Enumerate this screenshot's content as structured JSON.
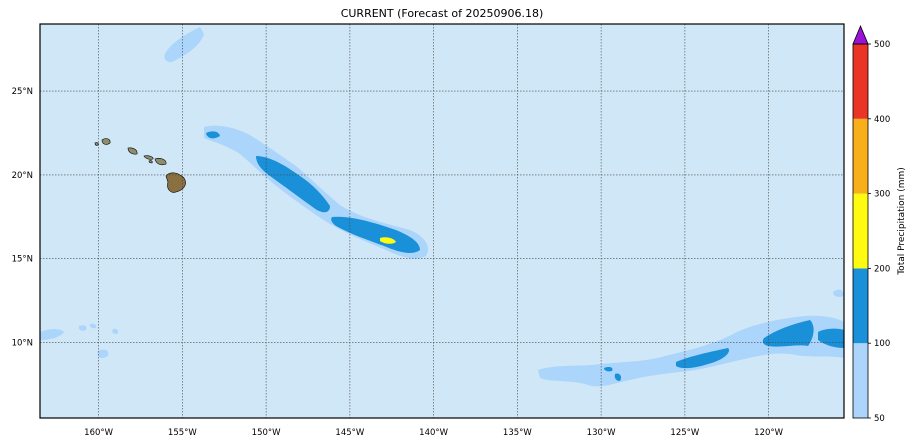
{
  "title": "CURRENT (Forecast of 20250906.18)",
  "map": {
    "lon_range": [
      -163.5,
      -115.5
    ],
    "lat_range": [
      5.5,
      29
    ],
    "lon_ticks": [
      {
        "value": -160,
        "label": "160°W"
      },
      {
        "value": -155,
        "label": "155°W"
      },
      {
        "value": -150,
        "label": "150°W"
      },
      {
        "value": -145,
        "label": "145°W"
      },
      {
        "value": -140,
        "label": "140°W"
      },
      {
        "value": -135,
        "label": "135°W"
      },
      {
        "value": -130,
        "label": "130°W"
      },
      {
        "value": -125,
        "label": "125°W"
      },
      {
        "value": -120,
        "label": "120°W"
      }
    ],
    "lat_ticks": [
      {
        "value": 10,
        "label": "10°N"
      },
      {
        "value": 15,
        "label": "15°N"
      },
      {
        "value": 20,
        "label": "20°N"
      },
      {
        "value": 25,
        "label": "25°N"
      }
    ],
    "grid": true,
    "background_color": "#d0e7f7"
  },
  "colorbar": {
    "label": "Total Precipitation (mm)",
    "ticks": [
      "50",
      "100",
      "200",
      "300",
      "400",
      "500"
    ],
    "bins": [
      {
        "from": 50,
        "to": 100,
        "color": "#acd5fb"
      },
      {
        "from": 100,
        "to": 200,
        "color": "#1a90d8"
      },
      {
        "from": 200,
        "to": 300,
        "color": "#fffb10"
      },
      {
        "from": 300,
        "to": 400,
        "color": "#f9af1a"
      },
      {
        "from": 400,
        "to": 500,
        "color": "#ea3425"
      }
    ],
    "extend_color": "#9a12d7"
  }
}
